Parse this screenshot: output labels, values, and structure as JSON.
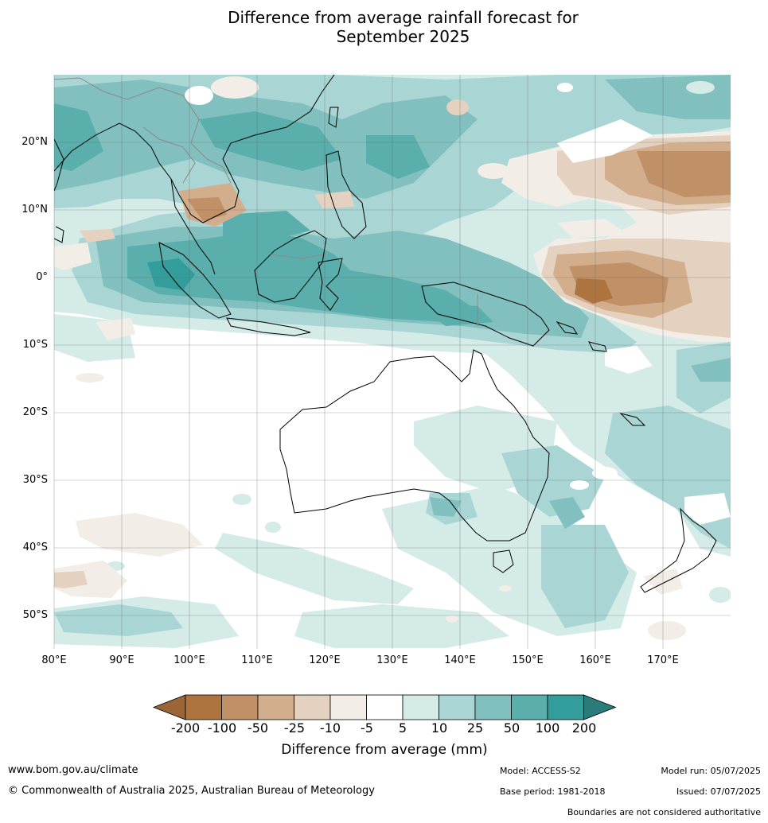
{
  "title": {
    "line1": "Difference from average rainfall forecast for",
    "line2": "September 2025"
  },
  "map": {
    "lat_labels": [
      "20°N",
      "10°N",
      "0°",
      "10°S",
      "20°S",
      "30°S",
      "40°S",
      "50°S"
    ],
    "lon_labels": [
      "80°E",
      "90°E",
      "100°E",
      "110°E",
      "120°E",
      "130°E",
      "140°E",
      "150°E",
      "160°E",
      "170°E"
    ]
  },
  "legend": {
    "title": "Difference from average (mm)",
    "tick_labels": [
      "-200",
      "-100",
      "-50",
      "-25",
      "-10",
      "-5",
      "5",
      "10",
      "25",
      "50",
      "100",
      "200"
    ],
    "colors": [
      "#9b6535",
      "#ad7440",
      "#c09066",
      "#d2ae8d",
      "#e4d1bf",
      "#f2ede6",
      "#ffffff",
      "#d4ebe8",
      "#a9d6d4",
      "#82c0bf",
      "#5aaeac",
      "#329d9b",
      "#2a7b79"
    ]
  },
  "footer": {
    "url": "www.bom.gov.au/climate",
    "copyright": "© Commonwealth of Australia 2025, Australian Bureau of Meteorology",
    "model": "Model: ACCESS-S2",
    "base_period": "Base period: 1981-2018",
    "model_run": "Model run: 05/07/2025",
    "issued": "Issued: 07/07/2025",
    "disclaimer": "Boundaries are not considered authoritative"
  }
}
